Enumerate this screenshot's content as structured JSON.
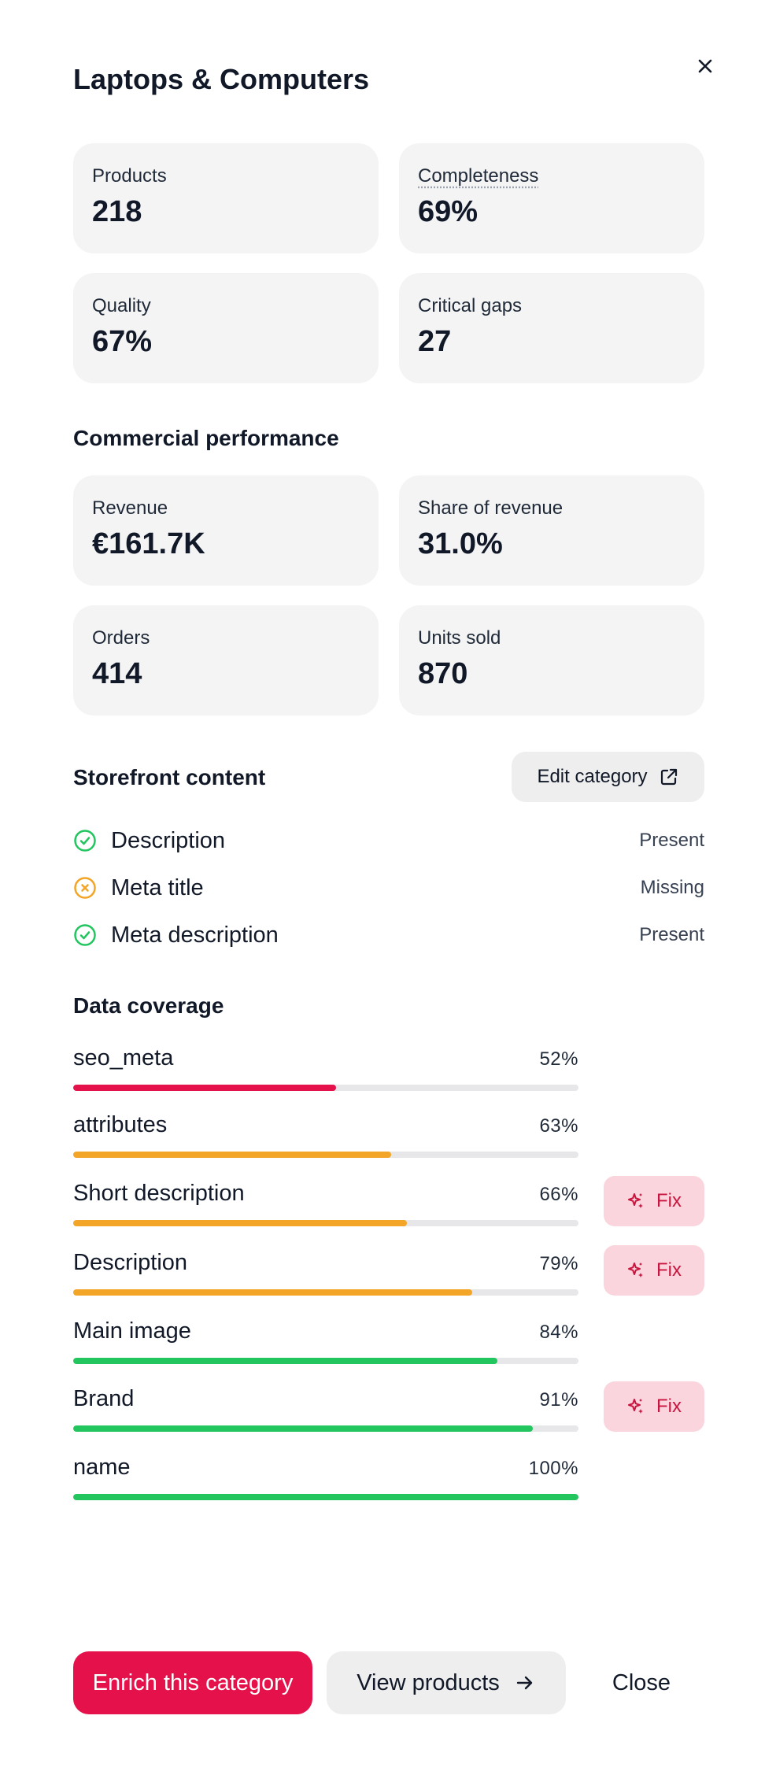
{
  "header": {
    "title": "Laptops & Computers",
    "close_icon": "close-icon"
  },
  "summary": {
    "products": {
      "label": "Products",
      "value": "218"
    },
    "completeness": {
      "label": "Completeness",
      "value": "69%"
    },
    "quality": {
      "label": "Quality",
      "value": "67%"
    },
    "critical_gaps": {
      "label": "Critical gaps",
      "value": "27"
    }
  },
  "commercial": {
    "title": "Commercial performance",
    "revenue": {
      "label": "Revenue",
      "value": "€161.7K"
    },
    "share": {
      "label": "Share of revenue",
      "value": "31.0%"
    },
    "orders": {
      "label": "Orders",
      "value": "414"
    },
    "units": {
      "label": "Units sold",
      "value": "870"
    }
  },
  "storefront": {
    "title": "Storefront content",
    "edit_label": "Edit category",
    "edit_icon": "external-link-icon",
    "items": [
      {
        "name": "Description",
        "state": "Present",
        "icon": "check-circle-icon"
      },
      {
        "name": "Meta title",
        "state": "Missing",
        "icon": "x-circle-icon"
      },
      {
        "name": "Meta description",
        "state": "Present",
        "icon": "check-circle-icon"
      }
    ]
  },
  "coverage": {
    "title": "Data coverage",
    "fix_label": "Fix",
    "fix_icon": "sparkles-icon",
    "rows": [
      {
        "name": "seo_meta",
        "pct_label": "52%",
        "pct": 52,
        "color": "#e5114a",
        "fix": false
      },
      {
        "name": "attributes",
        "pct_label": "63%",
        "pct": 63,
        "color": "#f2a526",
        "fix": false
      },
      {
        "name": "Short description",
        "pct_label": "66%",
        "pct": 66,
        "color": "#f2a526",
        "fix": true
      },
      {
        "name": "Description",
        "pct_label": "79%",
        "pct": 79,
        "color": "#f2a526",
        "fix": true
      },
      {
        "name": "Main image",
        "pct_label": "84%",
        "pct": 84,
        "color": "#22c55e",
        "fix": false
      },
      {
        "name": "Brand",
        "pct_label": "91%",
        "pct": 91,
        "color": "#22c55e",
        "fix": true
      },
      {
        "name": "name",
        "pct_label": "100%",
        "pct": 100,
        "color": "#22c55e",
        "fix": false
      }
    ]
  },
  "footer": {
    "enrich_label": "Enrich this category",
    "view_label": "View products",
    "view_icon": "arrow-right-icon",
    "close_label": "Close"
  },
  "colors": {
    "accent": "#e5114a",
    "present": "#22c55e",
    "missing": "#f2a526"
  }
}
